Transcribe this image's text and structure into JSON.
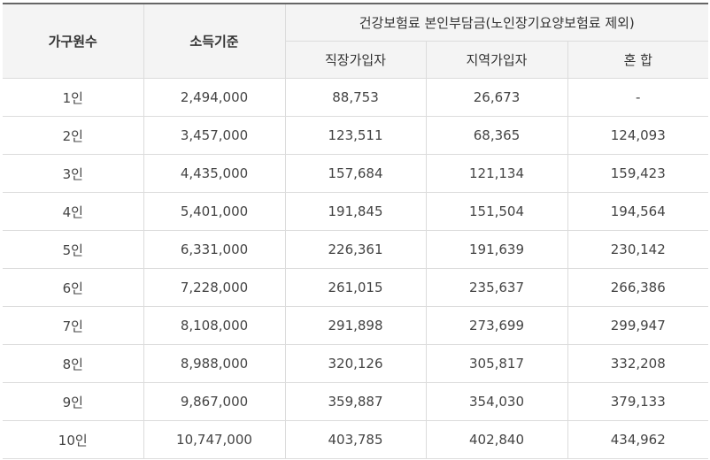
{
  "table": {
    "headers": {
      "household": "가구원수",
      "income": "소득기준",
      "premium_group": "건강보험료 본인부담금(노인장기요양보험료 제외)",
      "sub": [
        "직장가입자",
        "지역가입자",
        "혼 합"
      ]
    },
    "rows": [
      [
        "1인",
        "2,494,000",
        "88,753",
        "26,673",
        "-"
      ],
      [
        "2인",
        "3,457,000",
        "123,511",
        "68,365",
        "124,093"
      ],
      [
        "3인",
        "4,435,000",
        "157,684",
        "121,134",
        "159,423"
      ],
      [
        "4인",
        "5,401,000",
        "191,845",
        "151,504",
        "194,564"
      ],
      [
        "5인",
        "6,331,000",
        "226,361",
        "191,639",
        "230,142"
      ],
      [
        "6인",
        "7,228,000",
        "261,015",
        "235,637",
        "266,386"
      ],
      [
        "7인",
        "8,108,000",
        "291,898",
        "273,699",
        "299,947"
      ],
      [
        "8인",
        "8,988,000",
        "320,126",
        "305,817",
        "332,208"
      ],
      [
        "9인",
        "9,867,000",
        "359,887",
        "354,030",
        "379,133"
      ],
      [
        "10인",
        "10,747,000",
        "403,785",
        "402,840",
        "434,962"
      ]
    ]
  }
}
